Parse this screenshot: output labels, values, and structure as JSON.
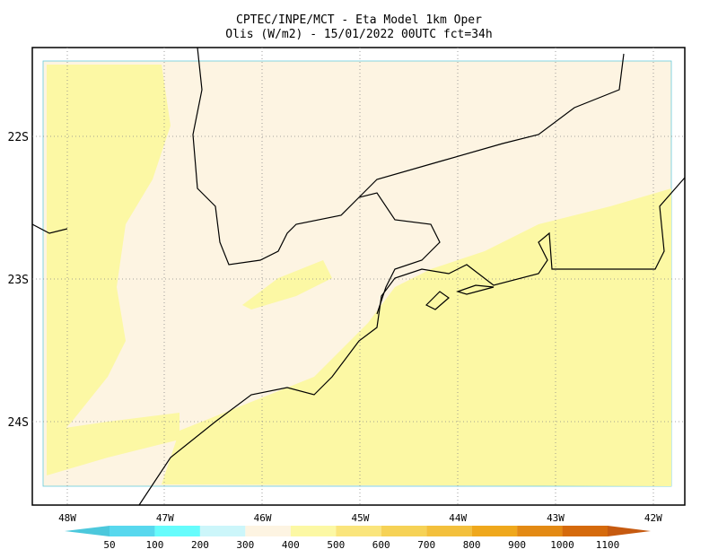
{
  "header": {
    "title": "CPTEC/INPE/MCT -  Eta Model 1km Oper",
    "subtitle": "Olis (W/m2) - 15/01/2022 00UTC fct=34h"
  },
  "map": {
    "lat_labels": [
      "22S",
      "23S",
      "24S"
    ],
    "lon_labels": [
      "48W",
      "47W",
      "46W",
      "45W",
      "44W",
      "43W",
      "42W"
    ]
  },
  "colorbar": {
    "labels": [
      "50",
      "100",
      "200",
      "300",
      "400",
      "500",
      "600",
      "700",
      "800",
      "900",
      "1000",
      "1100"
    ],
    "colors": [
      "#4cc8dc",
      "#58d8ee",
      "#66fcfc",
      "#ccf6fa",
      "#fdf4e2",
      "#fcf8a4",
      "#fae57c",
      "#f6d256",
      "#f3c03c",
      "#efa81c",
      "#e38a14",
      "#d56a0c",
      "#c65a10"
    ]
  }
}
